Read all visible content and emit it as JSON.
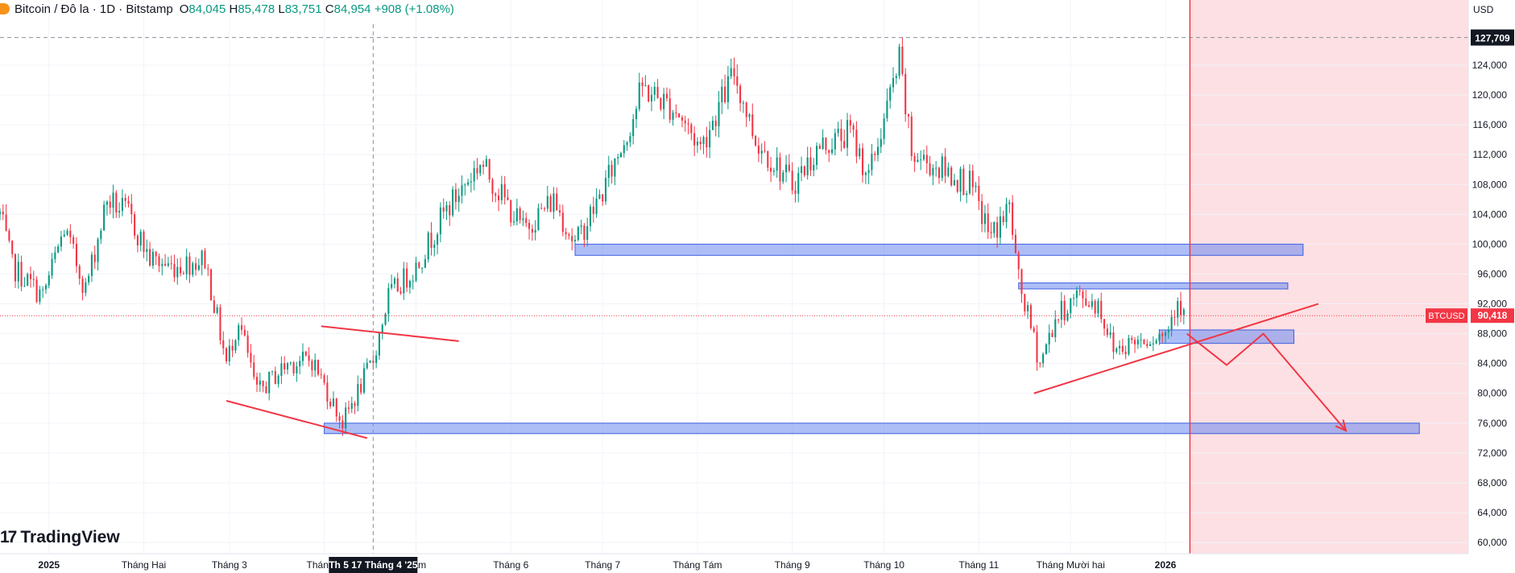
{
  "header": {
    "symbol": "Bitcoin / Đô la · 1D · Bitstamp",
    "o_label": "O",
    "o": "84,045",
    "h_label": "H",
    "h": "85,478",
    "l_label": "L",
    "l": "83,751",
    "c_label": "C",
    "c": "84,954",
    "change": "+908 (+1.08%)"
  },
  "watermark": "TradingView",
  "colors": {
    "up": "#089981",
    "down": "#f23645",
    "zone": "#5b7ef0",
    "forecast_bg": "#fde0e3",
    "drawing": "#f23645"
  },
  "chart_data": {
    "type": "candlestick",
    "symbol": "BTCUSD",
    "currency_label": "USD",
    "last_price": 90418,
    "last_price_label": "90,418",
    "crosshair_price_label": "127,709",
    "crosshair_price": 127709,
    "crosshair_date_label": "Th 5 17 Tháng 4 '25",
    "ylim": [
      58500,
      129500
    ],
    "y_ticks": [
      60000,
      64000,
      68000,
      72000,
      76000,
      80000,
      84000,
      88000,
      92000,
      96000,
      100000,
      104000,
      108000,
      112000,
      116000,
      120000,
      124000
    ],
    "y_tick_labels": [
      "60,000",
      "64,000",
      "68,000",
      "72,000",
      "76,000",
      "80,000",
      "84,000",
      "88,000",
      "92,000",
      "96,000",
      "100,000",
      "104,000",
      "108,000",
      "112,000",
      "116,000",
      "120,000",
      "124,000"
    ],
    "x_ticks": [
      {
        "date": "2025-01-01",
        "label": "2025"
      },
      {
        "date": "2025-02-01",
        "label": "Tháng Hai"
      },
      {
        "date": "2025-03-01",
        "label": "Tháng 3"
      },
      {
        "date": "2025-04-01",
        "label": "Tháng 4"
      },
      {
        "date": "2025-05-01",
        "label": "Năm"
      },
      {
        "date": "2025-06-01",
        "label": "Tháng 6"
      },
      {
        "date": "2025-07-01",
        "label": "Tháng 7"
      },
      {
        "date": "2025-08-01",
        "label": "Tháng Tám"
      },
      {
        "date": "2025-09-01",
        "label": "Tháng 9"
      },
      {
        "date": "2025-10-01",
        "label": "Tháng 10"
      },
      {
        "date": "2025-11-01",
        "label": "Tháng 11"
      },
      {
        "date": "2025-12-01",
        "label": "Tháng Mười hai"
      },
      {
        "date": "2026-01-01",
        "label": "2026"
      }
    ],
    "close_path": [
      [
        "2024-12-16",
        104000
      ],
      [
        "2024-12-20",
        97000
      ],
      [
        "2024-12-30",
        93000
      ],
      [
        "2025-01-06",
        102000
      ],
      [
        "2025-01-13",
        94000
      ],
      [
        "2025-01-20",
        106000
      ],
      [
        "2025-01-27",
        104000
      ],
      [
        "2025-02-03",
        98000
      ],
      [
        "2025-02-10",
        97000
      ],
      [
        "2025-02-21",
        98000
      ],
      [
        "2025-02-28",
        84000
      ],
      [
        "2025-03-04",
        90000
      ],
      [
        "2025-03-10",
        80000
      ],
      [
        "2025-03-20",
        84000
      ],
      [
        "2025-03-28",
        84500
      ],
      [
        "2025-04-07",
        76000
      ],
      [
        "2025-04-17",
        84500
      ],
      [
        "2025-04-22",
        93000
      ],
      [
        "2025-05-01",
        97000
      ],
      [
        "2025-05-10",
        104000
      ],
      [
        "2025-05-22",
        111000
      ],
      [
        "2025-06-05",
        102000
      ],
      [
        "2025-06-15",
        106000
      ],
      [
        "2025-06-22",
        100000
      ],
      [
        "2025-07-01",
        107000
      ],
      [
        "2025-07-10",
        116000
      ],
      [
        "2025-07-14",
        121000
      ],
      [
        "2025-07-25",
        118000
      ],
      [
        "2025-08-02",
        113000
      ],
      [
        "2025-08-13",
        123000
      ],
      [
        "2025-08-20",
        114000
      ],
      [
        "2025-09-01",
        108000
      ],
      [
        "2025-09-10",
        113000
      ],
      [
        "2025-09-20",
        115000
      ],
      [
        "2025-09-26",
        109000
      ],
      [
        "2025-10-06",
        124500
      ],
      [
        "2025-10-10",
        112000
      ],
      [
        "2025-10-20",
        110000
      ],
      [
        "2025-10-29",
        108000
      ],
      [
        "2025-11-05",
        101000
      ],
      [
        "2025-11-11",
        105000
      ],
      [
        "2025-11-14",
        95000
      ],
      [
        "2025-11-21",
        84000
      ],
      [
        "2025-11-26",
        90000
      ],
      [
        "2025-12-03",
        93000
      ],
      [
        "2025-12-10",
        92000
      ],
      [
        "2025-12-15",
        86000
      ],
      [
        "2025-12-25",
        87500
      ],
      [
        "2026-01-01",
        88000
      ],
      [
        "2026-01-05",
        93000
      ],
      [
        "2026-01-07",
        90418
      ]
    ],
    "zones": [
      {
        "from": "2025-06-22",
        "to": "2026-02-15",
        "top": 100000,
        "bottom": 98500
      },
      {
        "from": "2025-11-14",
        "to": "2026-02-10",
        "top": 94800,
        "bottom": 94000
      },
      {
        "from": "2025-12-30",
        "to": "2026-02-12",
        "top": 88500,
        "bottom": 86700
      },
      {
        "from": "2025-04-01",
        "to": "2026-03-25",
        "top": 76000,
        "bottom": 74600
      }
    ],
    "trend_lines": [
      [
        [
          "2025-02-28",
          79000
        ],
        [
          "2025-04-15",
          74000
        ]
      ],
      [
        [
          "2025-03-31",
          89000
        ],
        [
          "2025-05-15",
          87000
        ]
      ],
      [
        [
          "2025-11-19",
          80000
        ],
        [
          "2026-02-20",
          92000
        ]
      ]
    ],
    "projection": [
      [
        "2026-01-08",
        88000
      ],
      [
        "2026-01-21",
        83800
      ],
      [
        "2026-02-02",
        88000
      ],
      [
        "2026-03-01",
        75000
      ]
    ],
    "forecast_start": "2026-01-09"
  }
}
